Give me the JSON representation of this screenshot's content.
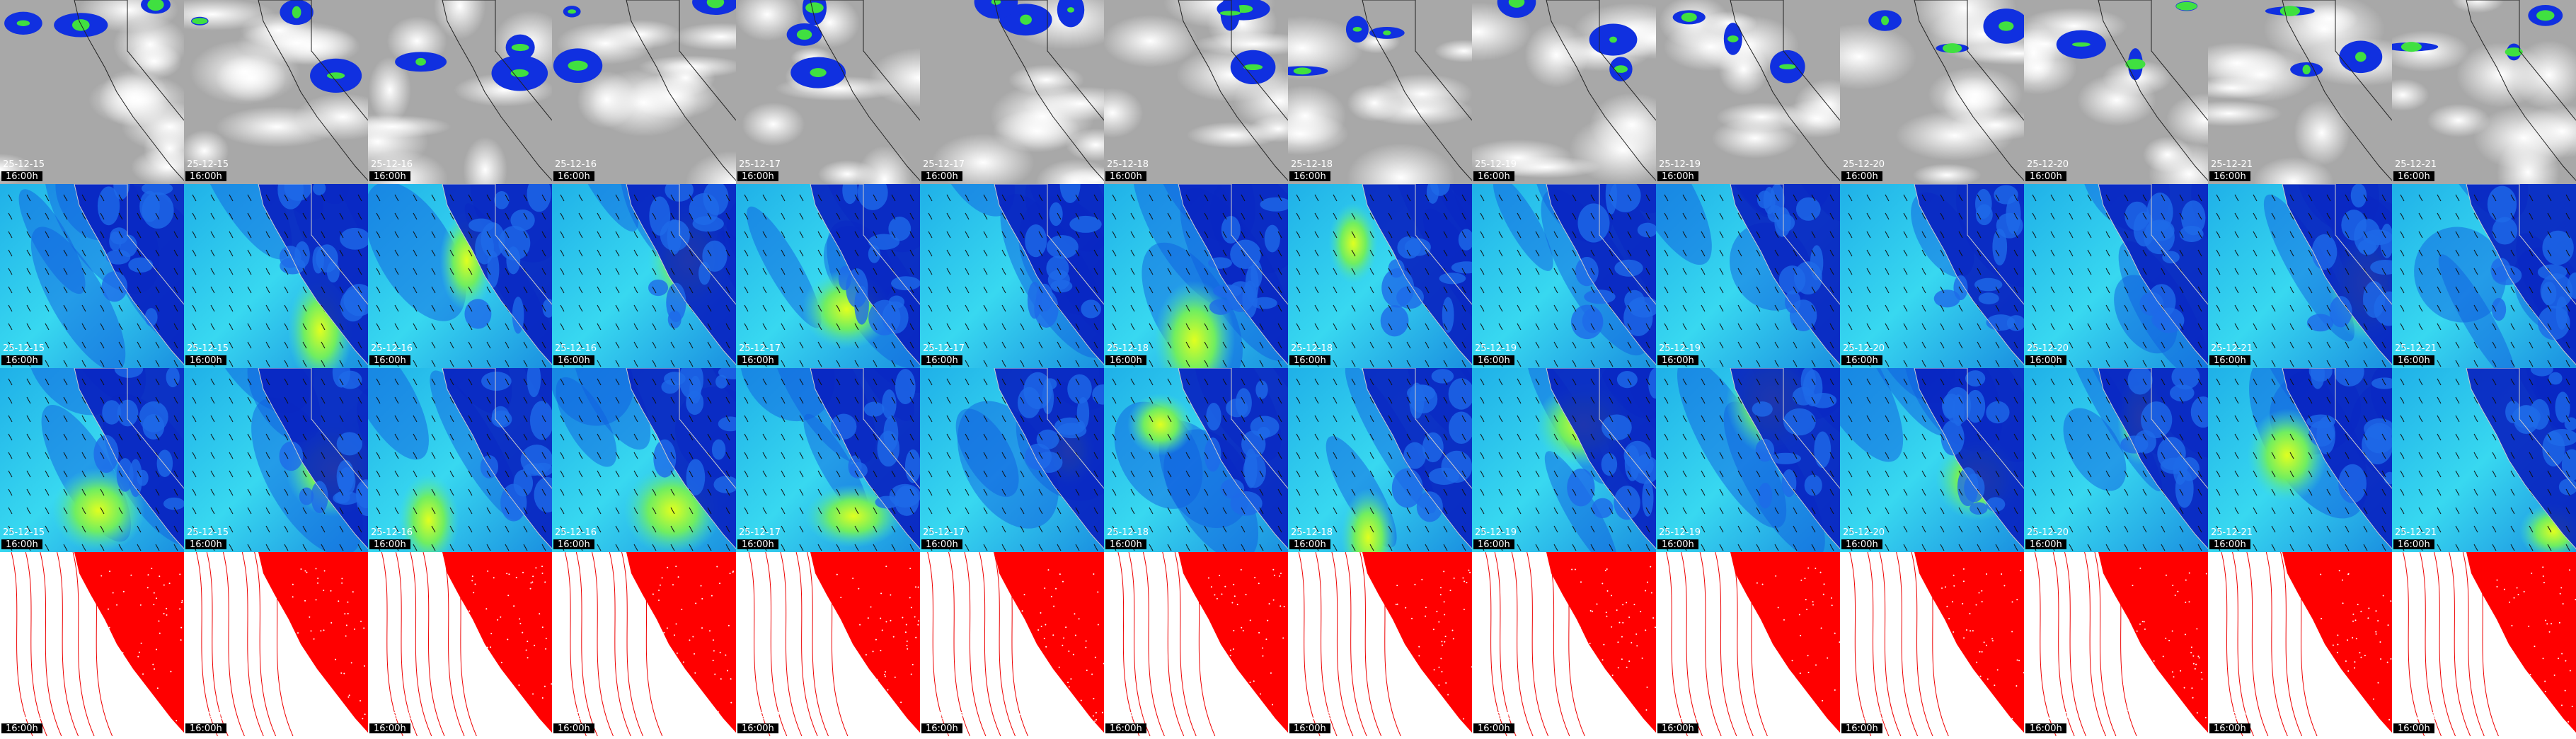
{
  "panel_rows": 4,
  "columns": [
    {
      "date": "25-12-15",
      "time": "16:00h"
    },
    {
      "date": "25-12-15",
      "time": "16:00h"
    },
    {
      "date": "25-12-16",
      "time": "16:00h"
    },
    {
      "date": "25-12-16",
      "time": "16:00h"
    },
    {
      "date": "25-12-17",
      "time": "16:00h"
    },
    {
      "date": "25-12-17",
      "time": "16:00h"
    },
    {
      "date": "25-12-18",
      "time": "16:00h"
    },
    {
      "date": "25-12-18",
      "time": "16:00h"
    },
    {
      "date": "25-12-19",
      "time": "16:00h"
    },
    {
      "date": "25-12-19",
      "time": "16:00h"
    },
    {
      "date": "25-12-20",
      "time": "16:00h"
    },
    {
      "date": "25-12-20",
      "time": "16:00h"
    },
    {
      "date": "25-12-21",
      "time": "16:00h"
    },
    {
      "date": "25-12-21",
      "time": "16:00h"
    }
  ]
}
